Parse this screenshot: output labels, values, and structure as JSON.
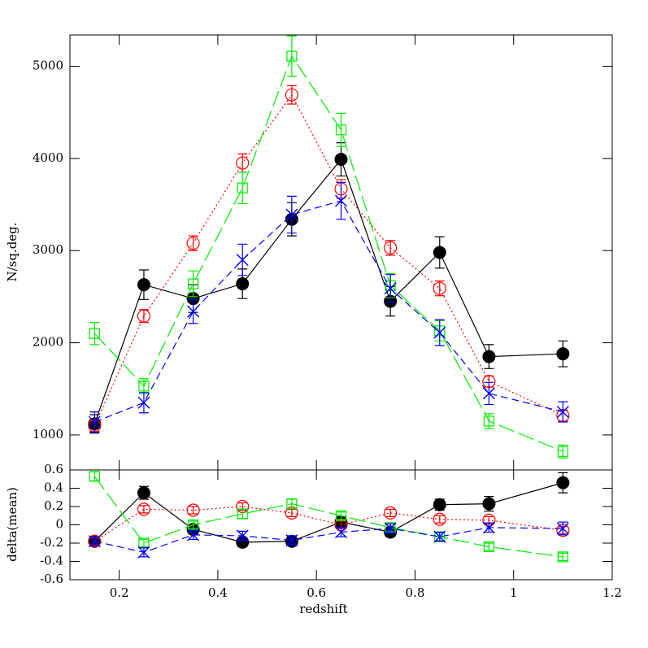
{
  "chart_data": [
    {
      "type": "line",
      "ylabel": "N/sq.deg.",
      "xlim": [
        0.1,
        1.2
      ],
      "ylim": [
        620,
        5340
      ],
      "yticks": [
        1000,
        2000,
        3000,
        4000,
        5000
      ],
      "x": [
        0.15,
        0.25,
        0.35,
        0.45,
        0.55,
        0.65,
        0.75,
        0.85,
        0.95,
        1.1
      ],
      "series": [
        {
          "color": "#000000",
          "marker": "filled-circle",
          "line_style": "solid",
          "values": [
            1120,
            2630,
            2480,
            2640,
            3340,
            3990,
            2450,
            2980,
            1850,
            1880
          ],
          "errors": [
            100,
            160,
            150,
            160,
            180,
            180,
            160,
            170,
            130,
            140
          ]
        },
        {
          "color": "#ff0000",
          "marker": "open-circle",
          "line_style": "dotted",
          "values": [
            1100,
            2290,
            3080,
            3950,
            4690,
            3670,
            3030,
            2590,
            1580,
            1210
          ],
          "errors": [
            60,
            70,
            80,
            100,
            100,
            100,
            80,
            80,
            60,
            60
          ]
        },
        {
          "color": "#00ee00",
          "marker": "square",
          "line_style": "long-dash",
          "values": [
            2100,
            1530,
            2640,
            3680,
            5110,
            4310,
            2620,
            2130,
            1150,
            820
          ],
          "errors": [
            120,
            80,
            140,
            170,
            220,
            180,
            130,
            110,
            80,
            70
          ]
        },
        {
          "color": "#0000ff",
          "marker": "cross",
          "line_style": "dash",
          "values": [
            1140,
            1350,
            2340,
            2900,
            3390,
            3540,
            2590,
            2110,
            1450,
            1250
          ],
          "errors": [
            110,
            110,
            130,
            170,
            200,
            200,
            150,
            140,
            120,
            110
          ]
        }
      ]
    },
    {
      "type": "line",
      "ylabel": "delta(mean)",
      "xlabel": "redshift",
      "xlim": [
        0.1,
        1.2
      ],
      "ylim": [
        -0.6,
        0.6
      ],
      "xticks": [
        0.2,
        0.4,
        0.6,
        0.8,
        1,
        1.2
      ],
      "yticks": [
        0.6,
        0.4,
        0.2,
        0,
        -0.2,
        -0.4,
        -0.6
      ],
      "x": [
        0.15,
        0.25,
        0.35,
        0.45,
        0.55,
        0.65,
        0.75,
        0.85,
        0.95,
        1.1
      ],
      "series": [
        {
          "color": "#000000",
          "marker": "filled-circle",
          "line_style": "solid",
          "values": [
            -0.18,
            0.35,
            -0.05,
            -0.19,
            -0.18,
            0.03,
            -0.08,
            0.22,
            0.23,
            0.46
          ],
          "errors": [
            0.04,
            0.07,
            0.05,
            0.05,
            0.04,
            0.06,
            0.05,
            0.06,
            0.08,
            0.11
          ]
        },
        {
          "color": "#ff0000",
          "marker": "open-circle",
          "line_style": "dotted",
          "values": [
            -0.18,
            0.17,
            0.16,
            0.2,
            0.13,
            0.0,
            0.13,
            0.06,
            0.05,
            -0.06
          ],
          "errors": [
            0.04,
            0.04,
            0.04,
            0.04,
            0.04,
            0.04,
            0.04,
            0.04,
            0.04,
            0.04
          ]
        },
        {
          "color": "#00ee00",
          "marker": "square",
          "line_style": "long-dash",
          "values": [
            0.53,
            -0.2,
            0.0,
            0.12,
            0.23,
            0.1,
            -0.03,
            -0.13,
            -0.24,
            -0.35
          ],
          "errors": [
            0.05,
            0.04,
            0.04,
            0.05,
            0.05,
            0.04,
            0.04,
            0.04,
            0.04,
            0.04
          ]
        },
        {
          "color": "#0000ff",
          "marker": "cross",
          "line_style": "dash",
          "values": [
            -0.18,
            -0.3,
            -0.11,
            -0.12,
            -0.17,
            -0.08,
            -0.04,
            -0.13,
            -0.03,
            -0.04
          ],
          "errors": [
            0.05,
            0.05,
            0.05,
            0.05,
            0.05,
            0.05,
            0.05,
            0.05,
            0.05,
            0.07
          ]
        }
      ]
    }
  ]
}
